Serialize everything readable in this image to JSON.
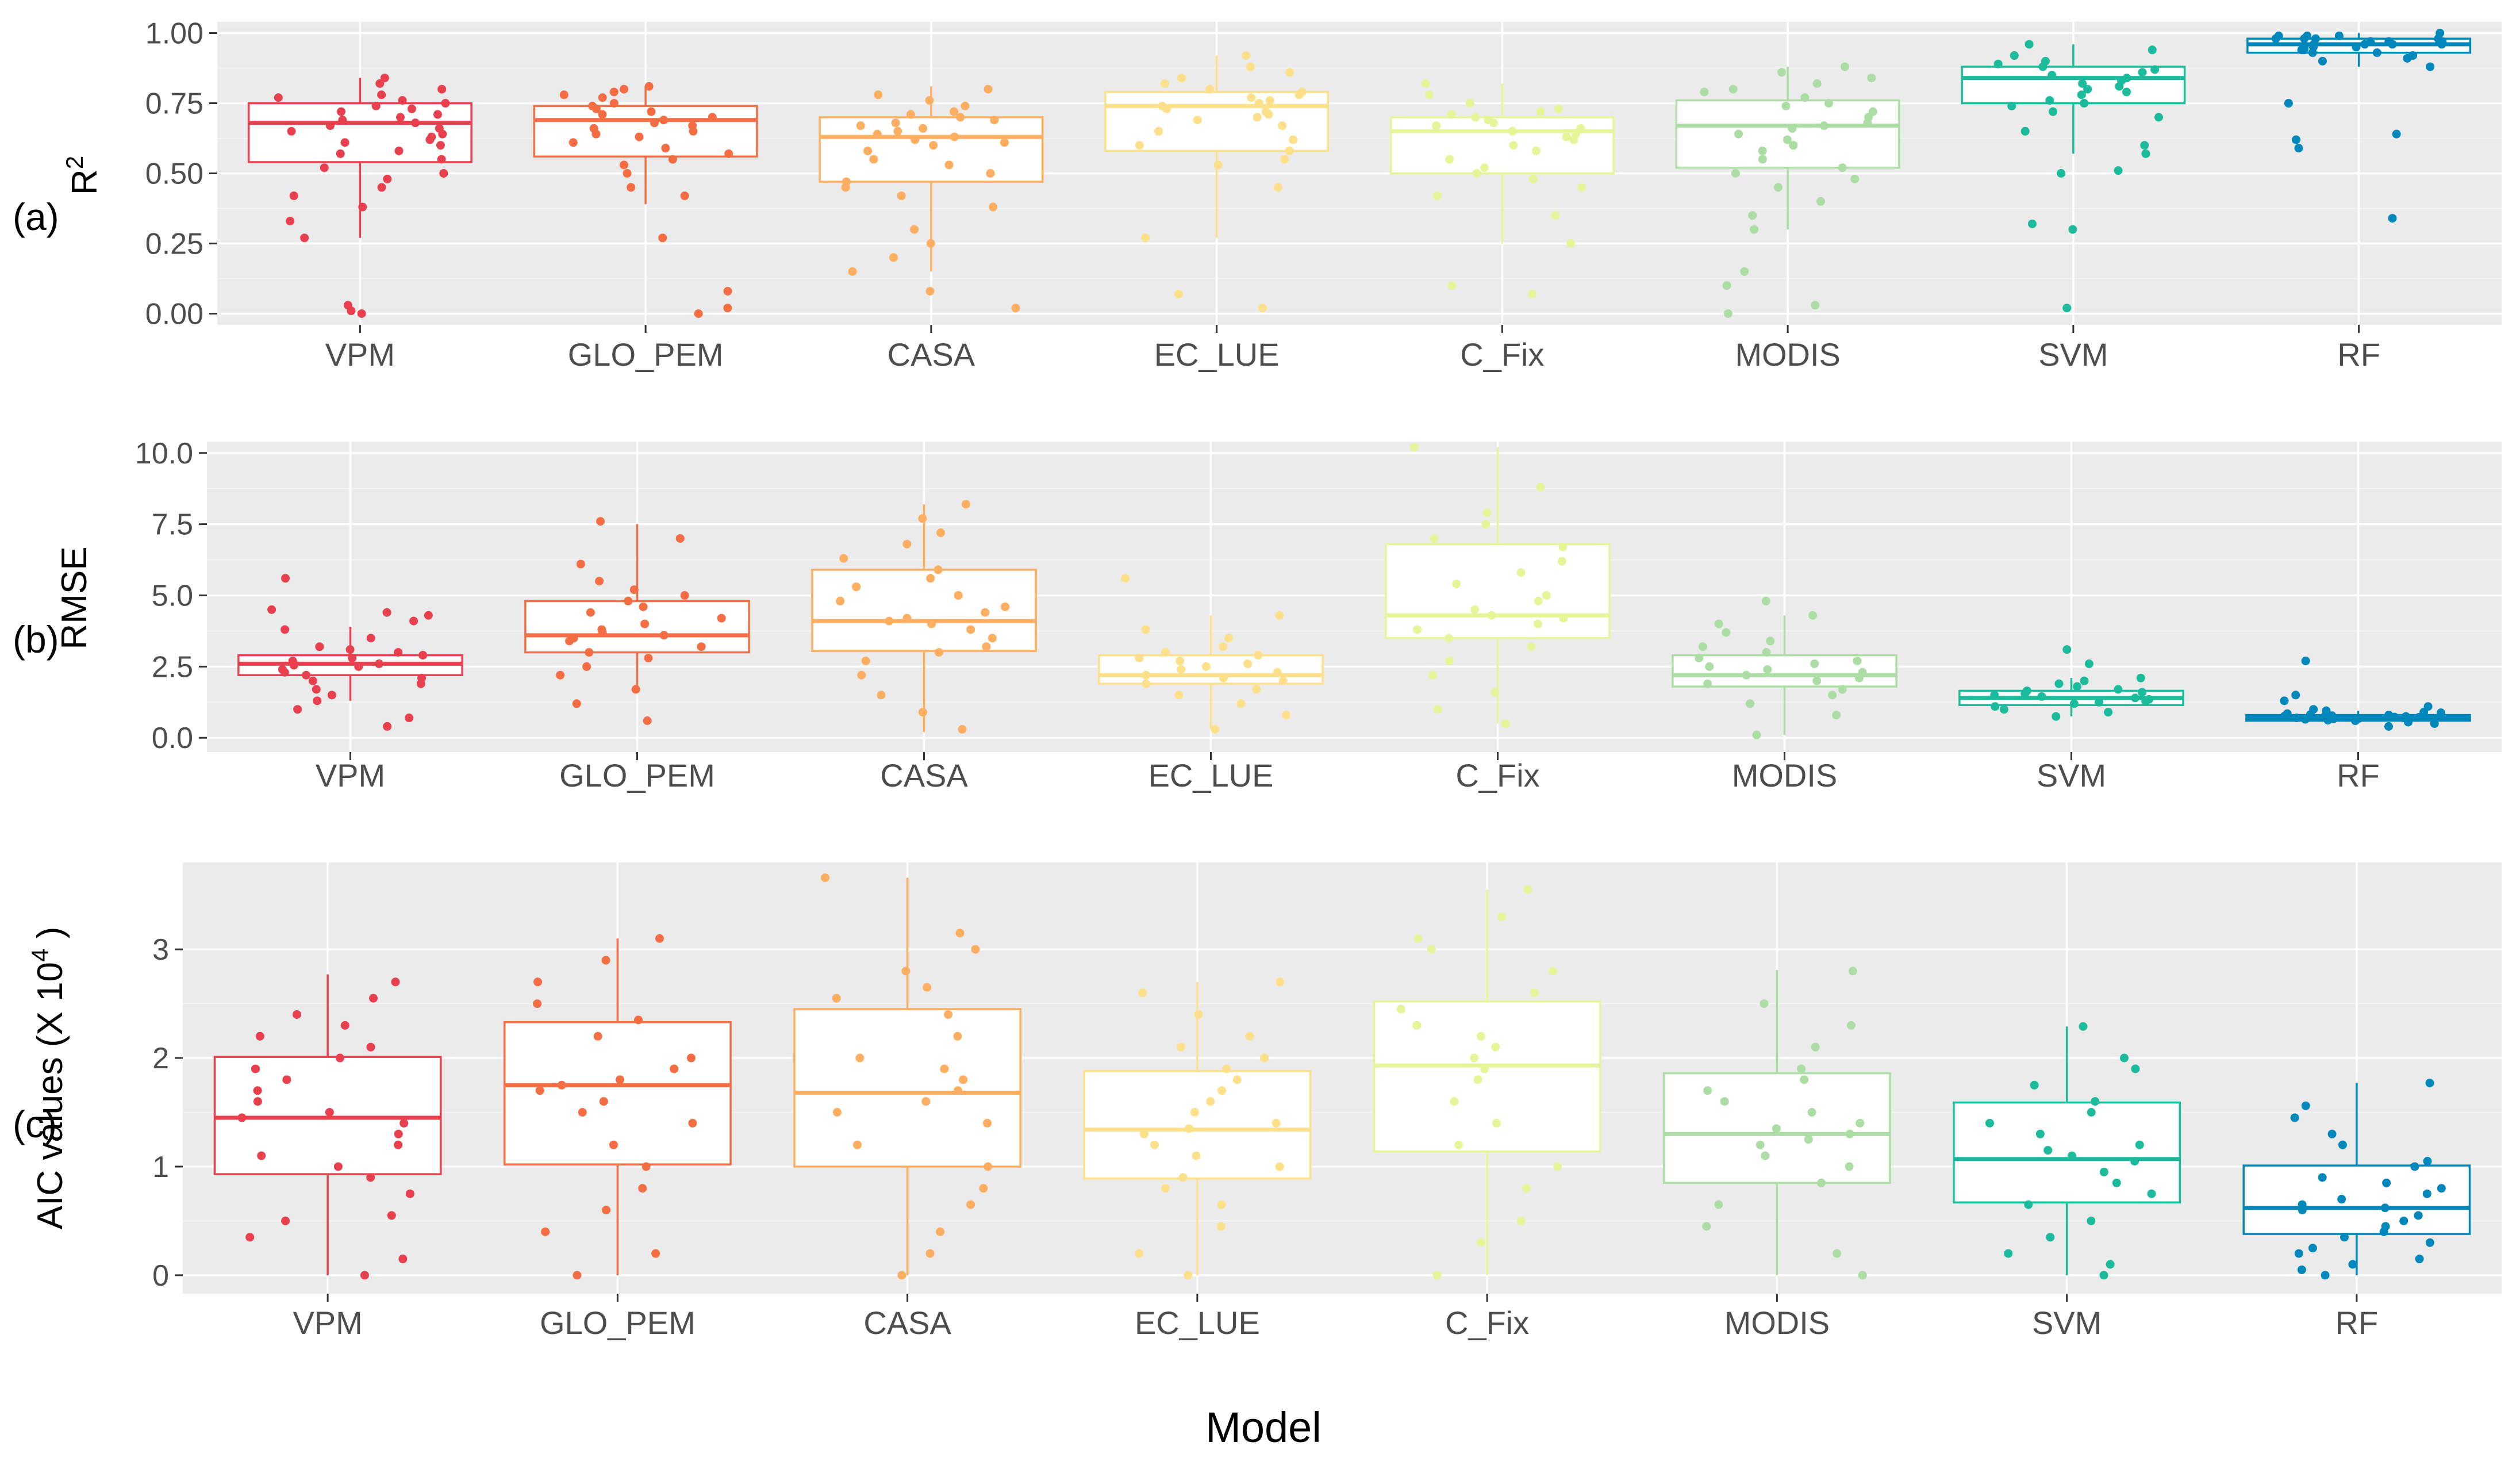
{
  "figure": {
    "x_axis_title": "Model",
    "categories": [
      "VPM",
      "GLO_PEM",
      "CASA",
      "EC_LUE",
      "C_Fix",
      "MODIS",
      "SVM",
      "RF"
    ],
    "colors": [
      "#E8404E",
      "#F46D43",
      "#FDAE61",
      "#FEE08B",
      "#E6F598",
      "#ABDDA4",
      "#1BBB9B",
      "#0087BB"
    ]
  },
  "chart_data": [
    {
      "type": "box",
      "panel_label": "(a)",
      "ylabel": "R",
      "ylabel_sup": "2",
      "ylim": [
        -0.04,
        1.04
      ],
      "yticks": [
        0,
        0.25,
        0.5,
        0.75,
        1.0
      ],
      "ytick_labels": [
        "0.00",
        "0.25",
        "0.50",
        "0.75",
        "1.00"
      ],
      "categories": [
        "VPM",
        "GLO_PEM",
        "CASA",
        "EC_LUE",
        "C_Fix",
        "MODIS",
        "SVM",
        "RF"
      ],
      "boxes": [
        {
          "q1": 0.54,
          "median": 0.68,
          "q3": 0.75,
          "whisker_low": 0.27,
          "whisker_high": 0.84
        },
        {
          "q1": 0.56,
          "median": 0.69,
          "q3": 0.74,
          "whisker_low": 0.39,
          "whisker_high": 0.81
        },
        {
          "q1": 0.47,
          "median": 0.63,
          "q3": 0.7,
          "whisker_low": 0.15,
          "whisker_high": 0.81
        },
        {
          "q1": 0.58,
          "median": 0.74,
          "q3": 0.79,
          "whisker_low": 0.27,
          "whisker_high": 0.92
        },
        {
          "q1": 0.5,
          "median": 0.65,
          "q3": 0.7,
          "whisker_low": 0.25,
          "whisker_high": 0.82
        },
        {
          "q1": 0.52,
          "median": 0.67,
          "q3": 0.76,
          "whisker_low": 0.3,
          "whisker_high": 0.88
        },
        {
          "q1": 0.75,
          "median": 0.84,
          "q3": 0.88,
          "whisker_low": 0.57,
          "whisker_high": 0.96
        },
        {
          "q1": 0.93,
          "median": 0.96,
          "q3": 0.98,
          "whisker_low": 0.88,
          "whisker_high": 1.0
        }
      ],
      "points": [
        [
          0.0,
          0.01,
          0.03,
          0.27,
          0.33,
          0.38,
          0.42,
          0.45,
          0.48,
          0.5,
          0.52,
          0.55,
          0.57,
          0.58,
          0.6,
          0.61,
          0.62,
          0.63,
          0.64,
          0.65,
          0.66,
          0.67,
          0.68,
          0.69,
          0.7,
          0.71,
          0.72,
          0.73,
          0.74,
          0.75,
          0.76,
          0.77,
          0.78,
          0.8,
          0.82,
          0.84
        ],
        [
          0.0,
          0.02,
          0.08,
          0.27,
          0.42,
          0.45,
          0.5,
          0.53,
          0.55,
          0.57,
          0.59,
          0.61,
          0.63,
          0.64,
          0.65,
          0.66,
          0.67,
          0.68,
          0.69,
          0.7,
          0.71,
          0.72,
          0.73,
          0.74,
          0.75,
          0.77,
          0.78,
          0.79,
          0.8,
          0.81
        ],
        [
          0.02,
          0.08,
          0.15,
          0.2,
          0.25,
          0.3,
          0.38,
          0.42,
          0.45,
          0.47,
          0.5,
          0.53,
          0.55,
          0.58,
          0.6,
          0.61,
          0.62,
          0.63,
          0.64,
          0.65,
          0.66,
          0.67,
          0.68,
          0.69,
          0.7,
          0.71,
          0.72,
          0.74,
          0.76,
          0.78,
          0.8
        ],
        [
          0.02,
          0.07,
          0.27,
          0.45,
          0.53,
          0.55,
          0.58,
          0.6,
          0.62,
          0.65,
          0.67,
          0.69,
          0.7,
          0.71,
          0.72,
          0.73,
          0.74,
          0.75,
          0.76,
          0.77,
          0.78,
          0.79,
          0.8,
          0.82,
          0.84,
          0.86,
          0.88,
          0.92
        ],
        [
          0.07,
          0.1,
          0.25,
          0.35,
          0.42,
          0.45,
          0.48,
          0.5,
          0.52,
          0.55,
          0.58,
          0.6,
          0.62,
          0.63,
          0.64,
          0.65,
          0.66,
          0.67,
          0.68,
          0.69,
          0.7,
          0.71,
          0.72,
          0.73,
          0.75,
          0.78,
          0.82
        ],
        [
          0.0,
          0.03,
          0.1,
          0.15,
          0.3,
          0.35,
          0.4,
          0.45,
          0.48,
          0.5,
          0.52,
          0.55,
          0.58,
          0.6,
          0.62,
          0.64,
          0.66,
          0.67,
          0.68,
          0.7,
          0.72,
          0.74,
          0.75,
          0.77,
          0.79,
          0.8,
          0.82,
          0.84,
          0.86,
          0.88
        ],
        [
          0.02,
          0.3,
          0.32,
          0.5,
          0.51,
          0.57,
          0.6,
          0.65,
          0.7,
          0.72,
          0.74,
          0.75,
          0.76,
          0.78,
          0.79,
          0.8,
          0.81,
          0.82,
          0.83,
          0.84,
          0.85,
          0.86,
          0.87,
          0.88,
          0.89,
          0.9,
          0.92,
          0.94,
          0.96
        ],
        [
          0.34,
          0.59,
          0.62,
          0.64,
          0.75,
          0.88,
          0.9,
          0.91,
          0.92,
          0.93,
          0.93,
          0.94,
          0.94,
          0.95,
          0.95,
          0.95,
          0.96,
          0.96,
          0.96,
          0.96,
          0.97,
          0.97,
          0.97,
          0.97,
          0.98,
          0.98,
          0.98,
          0.98,
          0.99,
          0.99,
          0.99,
          1.0
        ]
      ]
    },
    {
      "type": "box",
      "panel_label": "(b)",
      "ylabel": "RMSE",
      "ylim": [
        -0.5,
        10.4
      ],
      "yticks": [
        0,
        2.5,
        5.0,
        7.5,
        10.0
      ],
      "ytick_labels": [
        "0.0",
        "2.5",
        "5.0",
        "7.5",
        "10.0"
      ],
      "categories": [
        "VPM",
        "GLO_PEM",
        "CASA",
        "EC_LUE",
        "C_Fix",
        "MODIS",
        "SVM",
        "RF"
      ],
      "boxes": [
        {
          "q1": 2.2,
          "median": 2.6,
          "q3": 2.9,
          "whisker_low": 1.3,
          "whisker_high": 3.9
        },
        {
          "q1": 3.0,
          "median": 3.6,
          "q3": 4.8,
          "whisker_low": 1.7,
          "whisker_high": 7.5
        },
        {
          "q1": 3.05,
          "median": 4.1,
          "q3": 5.9,
          "whisker_low": 0.2,
          "whisker_high": 8.2
        },
        {
          "q1": 1.9,
          "median": 2.2,
          "q3": 2.9,
          "whisker_low": 0.3,
          "whisker_high": 4.3
        },
        {
          "q1": 3.5,
          "median": 4.3,
          "q3": 6.8,
          "whisker_low": 0.5,
          "whisker_high": 10.2
        },
        {
          "q1": 1.8,
          "median": 2.2,
          "q3": 2.9,
          "whisker_low": 0.1,
          "whisker_high": 4.3
        },
        {
          "q1": 1.15,
          "median": 1.4,
          "q3": 1.65,
          "whisker_low": 0.75,
          "whisker_high": 2.1
        },
        {
          "q1": 0.6,
          "median": 0.7,
          "q3": 0.8,
          "whisker_low": 0.5,
          "whisker_high": 0.95
        }
      ],
      "points": [
        [
          0.4,
          0.7,
          1.0,
          1.3,
          1.5,
          1.7,
          1.9,
          2.0,
          2.1,
          2.2,
          2.3,
          2.4,
          2.5,
          2.55,
          2.6,
          2.65,
          2.7,
          2.8,
          2.9,
          3.0,
          3.1,
          3.2,
          3.5,
          3.8,
          4.1,
          4.3,
          4.4,
          4.5,
          5.6
        ],
        [
          0.6,
          1.2,
          1.7,
          2.2,
          2.5,
          2.8,
          3.0,
          3.2,
          3.4,
          3.5,
          3.6,
          3.7,
          3.8,
          4.0,
          4.2,
          4.4,
          4.6,
          4.8,
          5.0,
          5.2,
          5.5,
          6.1,
          7.0,
          7.6
        ],
        [
          0.3,
          0.9,
          1.5,
          2.2,
          2.7,
          3.0,
          3.2,
          3.5,
          3.8,
          4.0,
          4.1,
          4.2,
          4.4,
          4.6,
          4.8,
          5.0,
          5.3,
          5.6,
          5.9,
          6.3,
          6.8,
          7.2,
          7.7,
          8.2
        ],
        [
          0.3,
          0.8,
          1.2,
          1.5,
          1.7,
          1.9,
          2.0,
          2.1,
          2.2,
          2.3,
          2.4,
          2.5,
          2.6,
          2.7,
          2.8,
          2.9,
          3.0,
          3.2,
          3.5,
          3.8,
          4.3,
          5.6
        ],
        [
          0.5,
          1.0,
          1.6,
          2.2,
          2.7,
          3.2,
          3.5,
          3.8,
          4.0,
          4.2,
          4.3,
          4.5,
          4.8,
          5.0,
          5.4,
          5.8,
          6.2,
          6.7,
          7.0,
          7.5,
          7.9,
          8.8,
          10.2
        ],
        [
          0.1,
          0.8,
          1.2,
          1.5,
          1.7,
          1.9,
          2.0,
          2.1,
          2.2,
          2.3,
          2.4,
          2.5,
          2.6,
          2.7,
          2.8,
          3.0,
          3.2,
          3.4,
          3.7,
          4.0,
          4.3,
          4.8
        ],
        [
          0.75,
          0.9,
          1.0,
          1.1,
          1.2,
          1.25,
          1.3,
          1.35,
          1.4,
          1.45,
          1.5,
          1.55,
          1.6,
          1.65,
          1.7,
          1.8,
          1.9,
          2.0,
          2.1,
          2.6,
          3.1
        ],
        [
          0.4,
          0.5,
          0.55,
          0.6,
          0.62,
          0.65,
          0.67,
          0.68,
          0.7,
          0.7,
          0.72,
          0.73,
          0.75,
          0.75,
          0.76,
          0.78,
          0.8,
          0.8,
          0.82,
          0.85,
          0.88,
          0.9,
          0.95,
          1.0,
          1.1,
          1.3,
          1.5,
          2.7
        ]
      ]
    },
    {
      "type": "box",
      "panel_label": "(c)",
      "ylabel": "AIC values (X 10",
      "ylabel_sup": "4",
      "ylabel_end": ")",
      "ylim": [
        -0.17,
        3.8
      ],
      "yticks": [
        0,
        1,
        2,
        3
      ],
      "ytick_labels": [
        "0",
        "1",
        "2",
        "3"
      ],
      "categories": [
        "VPM",
        "GLO_PEM",
        "CASA",
        "EC_LUE",
        "C_Fix",
        "MODIS",
        "SVM",
        "RF"
      ],
      "boxes": [
        {
          "q1": 0.93,
          "median": 1.45,
          "q3": 2.01,
          "whisker_low": 0.0,
          "whisker_high": 2.77
        },
        {
          "q1": 1.02,
          "median": 1.75,
          "q3": 2.33,
          "whisker_low": 0.0,
          "whisker_high": 3.1
        },
        {
          "q1": 1.0,
          "median": 1.68,
          "q3": 2.45,
          "whisker_low": 0.0,
          "whisker_high": 3.66
        },
        {
          "q1": 0.89,
          "median": 1.34,
          "q3": 1.88,
          "whisker_low": 0.0,
          "whisker_high": 2.7
        },
        {
          "q1": 1.14,
          "median": 1.93,
          "q3": 2.52,
          "whisker_low": 0.0,
          "whisker_high": 3.55
        },
        {
          "q1": 0.85,
          "median": 1.3,
          "q3": 1.86,
          "whisker_low": 0.0,
          "whisker_high": 2.81
        },
        {
          "q1": 0.67,
          "median": 1.07,
          "q3": 1.59,
          "whisker_low": 0.0,
          "whisker_high": 2.29
        },
        {
          "q1": 0.38,
          "median": 0.62,
          "q3": 1.01,
          "whisker_low": 0.0,
          "whisker_high": 1.77
        }
      ],
      "points": [
        [
          0.0,
          0.15,
          0.35,
          0.5,
          0.55,
          0.75,
          0.9,
          1.0,
          1.1,
          1.2,
          1.3,
          1.4,
          1.45,
          1.5,
          1.6,
          1.7,
          1.8,
          1.9,
          2.0,
          2.1,
          2.2,
          2.3,
          2.4,
          2.55,
          2.7
        ],
        [
          0.0,
          0.2,
          0.4,
          0.6,
          0.8,
          1.0,
          1.2,
          1.4,
          1.5,
          1.6,
          1.7,
          1.75,
          1.8,
          1.9,
          2.0,
          2.2,
          2.35,
          2.5,
          2.7,
          2.9,
          3.1
        ],
        [
          0.0,
          0.2,
          0.4,
          0.65,
          0.8,
          1.0,
          1.2,
          1.4,
          1.5,
          1.6,
          1.7,
          1.8,
          1.9,
          2.0,
          2.2,
          2.4,
          2.55,
          2.65,
          2.8,
          3.0,
          3.15,
          3.66
        ],
        [
          0.0,
          0.2,
          0.45,
          0.65,
          0.8,
          0.9,
          1.0,
          1.1,
          1.2,
          1.3,
          1.35,
          1.4,
          1.5,
          1.6,
          1.7,
          1.8,
          1.9,
          2.0,
          2.1,
          2.2,
          2.4,
          2.6,
          2.7
        ],
        [
          0.0,
          0.3,
          0.5,
          0.8,
          1.0,
          1.2,
          1.4,
          1.6,
          1.8,
          1.9,
          2.0,
          2.1,
          2.2,
          2.3,
          2.45,
          2.6,
          2.8,
          3.0,
          3.1,
          3.3,
          3.55
        ],
        [
          0.0,
          0.2,
          0.45,
          0.65,
          0.85,
          1.0,
          1.1,
          1.2,
          1.25,
          1.3,
          1.35,
          1.4,
          1.5,
          1.6,
          1.7,
          1.8,
          1.9,
          2.1,
          2.3,
          2.5,
          2.8
        ],
        [
          0.0,
          0.1,
          0.2,
          0.35,
          0.5,
          0.65,
          0.75,
          0.85,
          0.95,
          1.05,
          1.1,
          1.15,
          1.2,
          1.3,
          1.4,
          1.5,
          1.6,
          1.75,
          1.9,
          2.0,
          2.29
        ],
        [
          0.0,
          0.05,
          0.1,
          0.15,
          0.2,
          0.25,
          0.3,
          0.35,
          0.4,
          0.45,
          0.5,
          0.55,
          0.6,
          0.62,
          0.65,
          0.7,
          0.75,
          0.8,
          0.85,
          0.9,
          1.0,
          1.05,
          1.2,
          1.3,
          1.45,
          1.56,
          1.77
        ]
      ]
    }
  ]
}
